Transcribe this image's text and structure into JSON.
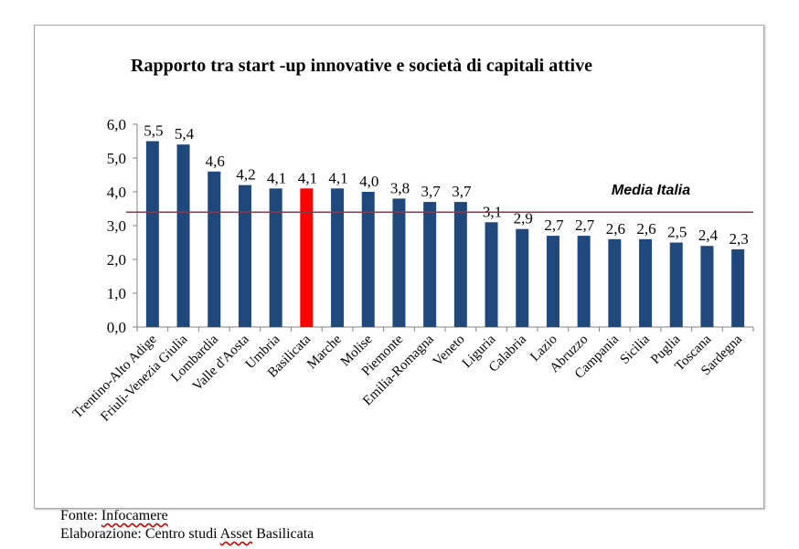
{
  "chart_data": {
    "type": "bar",
    "title": "Rapporto tra start -up innovative  e società di capitali attive",
    "categories": [
      "Trentino-Alto Adige",
      "Friuli-Venezia Giulia",
      "Lombardia",
      "Valle d'Aosta",
      "Umbria",
      "Basilicata",
      "Marche",
      "Molise",
      "Piemonte",
      "Emilia-Romagna",
      "Veneto",
      "Liguria",
      "Calabria",
      "Lazio",
      "Abruzzo",
      "Campania",
      "Sicilia",
      "Puglia",
      "Toscana",
      "Sardegna"
    ],
    "values": [
      5.5,
      5.4,
      4.6,
      4.2,
      4.1,
      4.1,
      4.1,
      4.0,
      3.8,
      3.7,
      3.7,
      3.1,
      2.9,
      2.7,
      2.7,
      2.6,
      2.6,
      2.5,
      2.4,
      2.3
    ],
    "value_labels": [
      "5,5",
      "5,4",
      "4,6",
      "4,2",
      "4,1",
      "4,1",
      "4,1",
      "4,0",
      "3,8",
      "3,7",
      "3,7",
      "3,1",
      "2,9",
      "2,7",
      "2,7",
      "2,6",
      "2,6",
      "2,5",
      "2,4",
      "2,3"
    ],
    "ylim": [
      0,
      6
    ],
    "yticks": [
      "0,0",
      "1,0",
      "2,0",
      "3,0",
      "4,0",
      "5,0",
      "6,0"
    ],
    "bar_color": "#1f497d",
    "highlight_category": "Basilicata",
    "highlight_color": "#ff0000",
    "reference_line": {
      "label": "Media Italia",
      "value": 3.4,
      "color": "#7f3f4f"
    },
    "grid": false,
    "legend": false
  },
  "footer": {
    "source_prefix": "Fonte: ",
    "source_name": "Infocamere",
    "elab_prefix": "Elaborazione: Centro studi ",
    "elab_org": "Asset",
    "elab_suffix": " Basilicata"
  }
}
